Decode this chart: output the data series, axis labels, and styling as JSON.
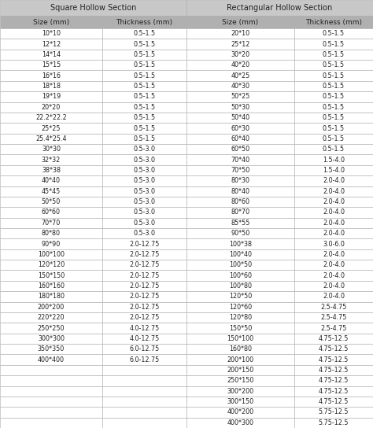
{
  "title_left": "Square Hollow Section",
  "title_right": "Rectangular Hollow Section",
  "col_headers": [
    "Size（mm）",
    "Thickness（mm）",
    "Size（mm）",
    "Thickness（mm）"
  ],
  "col_headers_plain": [
    "Size (mm)",
    "Thickness (mm)",
    "Size (mm)",
    "Thickness (mm)"
  ],
  "square_data": [
    [
      "10*10",
      "0.5-1.5"
    ],
    [
      "12*12",
      "0.5-1.5"
    ],
    [
      "14*14",
      "0.5-1.5"
    ],
    [
      "15*15",
      "0.5-1.5"
    ],
    [
      "16*16",
      "0.5-1.5"
    ],
    [
      "18*18",
      "0.5-1.5"
    ],
    [
      "19*19",
      "0.5-1.5"
    ],
    [
      "20*20",
      "0.5-1.5"
    ],
    [
      "22.2*22.2",
      "0.5-1.5"
    ],
    [
      "25*25",
      "0.5-1.5"
    ],
    [
      "25.4*25.4",
      "0.5-1.5"
    ],
    [
      "30*30",
      "0.5-3.0"
    ],
    [
      "32*32",
      "0.5-3.0"
    ],
    [
      "38*38",
      "0.5-3.0"
    ],
    [
      "40*40",
      "0.5-3.0"
    ],
    [
      "45*45",
      "0.5-3.0"
    ],
    [
      "50*50",
      "0.5-3.0"
    ],
    [
      "60*60",
      "0.5-3.0"
    ],
    [
      "70*70",
      "0.5-3.0"
    ],
    [
      "80*80",
      "0.5-3.0"
    ],
    [
      "90*90",
      "2.0-12.75"
    ],
    [
      "100*100",
      "2.0-12.75"
    ],
    [
      "120*120",
      "2.0-12.75"
    ],
    [
      "150*150",
      "2.0-12.75"
    ],
    [
      "160*160",
      "2.0-12.75"
    ],
    [
      "180*180",
      "2.0-12.75"
    ],
    [
      "200*200",
      "2.0-12.75"
    ],
    [
      "220*220",
      "2.0-12.75"
    ],
    [
      "250*250",
      "4.0-12.75"
    ],
    [
      "300*300",
      "4.0-12.75"
    ],
    [
      "350*350",
      "6.0-12.75"
    ],
    [
      "400*400",
      "6.0-12.75"
    ]
  ],
  "rect_data": [
    [
      "20*10",
      "0.5-1.5"
    ],
    [
      "25*12",
      "0.5-1.5"
    ],
    [
      "30*20",
      "0.5-1.5"
    ],
    [
      "40*20",
      "0.5-1.5"
    ],
    [
      "40*25",
      "0.5-1.5"
    ],
    [
      "40*30",
      "0.5-1.5"
    ],
    [
      "50*25",
      "0.5-1.5"
    ],
    [
      "50*30",
      "0.5-1.5"
    ],
    [
      "50*40",
      "0.5-1.5"
    ],
    [
      "60*30",
      "0.5-1.5"
    ],
    [
      "60*40",
      "0.5-1.5"
    ],
    [
      "60*50",
      "0.5-1.5"
    ],
    [
      "70*40",
      "1.5-4.0"
    ],
    [
      "70*50",
      "1.5-4.0"
    ],
    [
      "80*30",
      "2.0-4.0"
    ],
    [
      "80*40",
      "2.0-4.0"
    ],
    [
      "80*60",
      "2.0-4.0"
    ],
    [
      "80*70",
      "2.0-4.0"
    ],
    [
      "85*55",
      "2.0-4.0"
    ],
    [
      "90*50",
      "2.0-4.0"
    ],
    [
      "100*38",
      "3.0-6.0"
    ],
    [
      "100*40",
      "2.0-4.0"
    ],
    [
      "100*50",
      "2.0-4.0"
    ],
    [
      "100*60",
      "2.0-4.0"
    ],
    [
      "100*80",
      "2.0-4.0"
    ],
    [
      "120*50",
      "2.0-4.0"
    ],
    [
      "120*60",
      "2.5-4.75"
    ],
    [
      "120*80",
      "2.5-4.75"
    ],
    [
      "150*50",
      "2.5-4.75"
    ],
    [
      "150*100",
      "4.75-12.5"
    ],
    [
      "160*80",
      "4.75-12.5"
    ],
    [
      "200*100",
      "4.75-12.5"
    ],
    [
      "200*150",
      "4.75-12.5"
    ],
    [
      "250*150",
      "4.75-12.5"
    ],
    [
      "300*200",
      "4.75-12.5"
    ],
    [
      "300*150",
      "4.75-12.5"
    ],
    [
      "400*200",
      "5.75-12.5"
    ],
    [
      "400*300",
      "5.75-12.5"
    ]
  ],
  "bg_title": "#c8c8c8",
  "bg_header": "#b0b0b0",
  "bg_data": "#ffffff",
  "border_color": "#aaaaaa",
  "text_color": "#222222",
  "title_fontsize": 7.0,
  "header_fontsize": 6.5,
  "data_fontsize": 5.8
}
